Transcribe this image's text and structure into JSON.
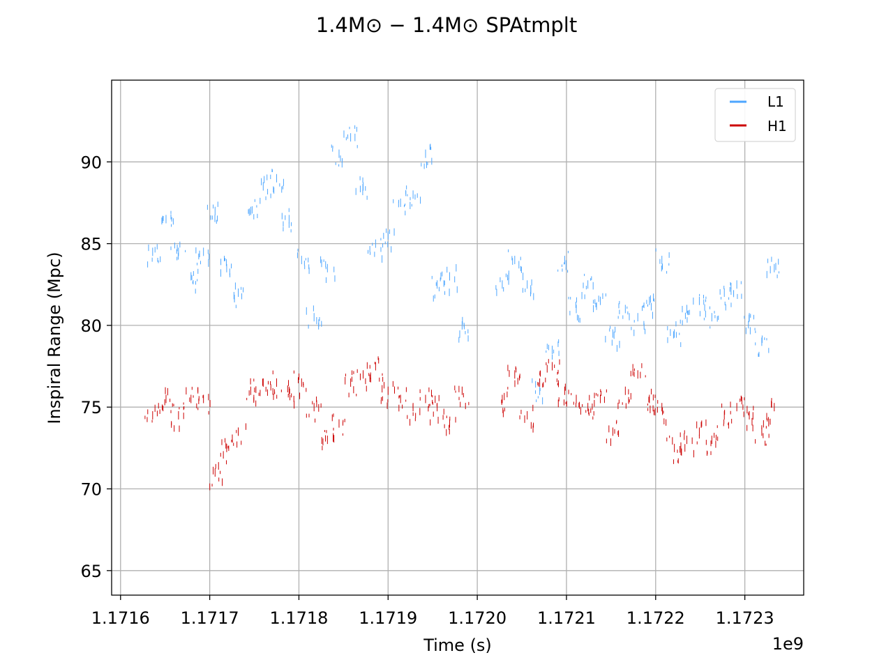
{
  "chart_data": {
    "type": "scatter",
    "title_main": "1.4M⊙ − 1.4M⊙",
    "title_suffix": "SPAtmplt",
    "xlabel": "Time (s)",
    "ylabel": "Inspiral Range (Mpc)",
    "x_offset_label": "1e9",
    "x_scale": 1000000000,
    "xlim": [
      1.17159,
      1.172366
    ],
    "ylim": [
      63.5,
      95
    ],
    "xticks": [
      1.1716,
      1.1717,
      1.1718,
      1.1719,
      1.172,
      1.1721,
      1.1722,
      1.1723
    ],
    "xtick_labels": [
      "1.1716",
      "1.1717",
      "1.1718",
      "1.1719",
      "1.1720",
      "1.1721",
      "1.1722",
      "1.1723"
    ],
    "yticks": [
      65,
      70,
      75,
      80,
      85,
      90
    ],
    "ytick_labels": [
      "65",
      "70",
      "75",
      "80",
      "85",
      "90"
    ],
    "grid": true,
    "legend_position": "top-right",
    "series": [
      {
        "name": "L1",
        "color": "#4da6ff",
        "marker": "vertical-line",
        "x": [
          1.171636,
          1.171651,
          1.171665,
          1.171679,
          1.171693,
          1.171706,
          1.171719,
          1.171732,
          1.171746,
          1.17176,
          1.171775,
          1.171789,
          1.171803,
          1.171817,
          1.171832,
          1.171845,
          1.171858,
          1.171872,
          1.171886,
          1.1719,
          1.171914,
          1.171928,
          1.171942,
          1.171955,
          1.171969,
          1.171983,
          1.172028,
          1.172042,
          1.172056,
          1.17207,
          1.172084,
          1.172098,
          1.172111,
          1.172124,
          1.172138,
          1.172152,
          1.172166,
          1.17218,
          1.172193,
          1.172207,
          1.172221,
          1.172235,
          1.172249,
          1.172263,
          1.172277,
          1.172291,
          1.172305,
          1.172319,
          1.172333
        ],
        "y": [
          84.5,
          86.5,
          84.5,
          83.0,
          84.5,
          87.0,
          83.5,
          82.0,
          87.0,
          88.5,
          89.0,
          86.5,
          84.0,
          80.5,
          83.5,
          90.5,
          91.5,
          88.5,
          85.0,
          85.5,
          87.5,
          88.0,
          90.5,
          82.5,
          83.0,
          80.0,
          82.5,
          84.0,
          82.5,
          76.0,
          78.5,
          84.0,
          81.0,
          82.5,
          81.5,
          79.5,
          81.0,
          80.5,
          81.5,
          84.0,
          79.5,
          81.0,
          81.5,
          80.5,
          82.0,
          82.5,
          80.5,
          79.0,
          83.5
        ]
      },
      {
        "name": "H1",
        "color": "#cc0000",
        "marker": "vertical-line",
        "x": [
          1.171636,
          1.171651,
          1.171665,
          1.171679,
          1.171693,
          1.171706,
          1.171719,
          1.171732,
          1.171746,
          1.17176,
          1.171775,
          1.171789,
          1.171803,
          1.171817,
          1.171832,
          1.171845,
          1.171858,
          1.171872,
          1.171886,
          1.1719,
          1.171914,
          1.171928,
          1.171942,
          1.171955,
          1.171969,
          1.171983,
          1.172028,
          1.172042,
          1.172056,
          1.17207,
          1.172084,
          1.172098,
          1.172111,
          1.172124,
          1.172138,
          1.172152,
          1.172166,
          1.17218,
          1.172193,
          1.172207,
          1.172221,
          1.172235,
          1.172249,
          1.172263,
          1.172277,
          1.172291,
          1.172305,
          1.172319,
          1.172333
        ],
        "y": [
          74.5,
          75.5,
          74.5,
          75.5,
          75.5,
          71.0,
          72.5,
          73.5,
          76.0,
          76.5,
          76.5,
          76.0,
          76.5,
          75.0,
          73.0,
          74.0,
          76.5,
          77.0,
          77.5,
          76.0,
          75.5,
          75.0,
          75.5,
          75.0,
          74.0,
          76.0,
          75.5,
          77.0,
          74.5,
          76.5,
          77.5,
          76.0,
          75.5,
          75.0,
          75.5,
          73.5,
          76.0,
          77.0,
          75.5,
          75.0,
          72.5,
          73.0,
          73.5,
          73.0,
          74.5,
          75.0,
          74.5,
          73.5,
          75.0
        ]
      }
    ]
  }
}
